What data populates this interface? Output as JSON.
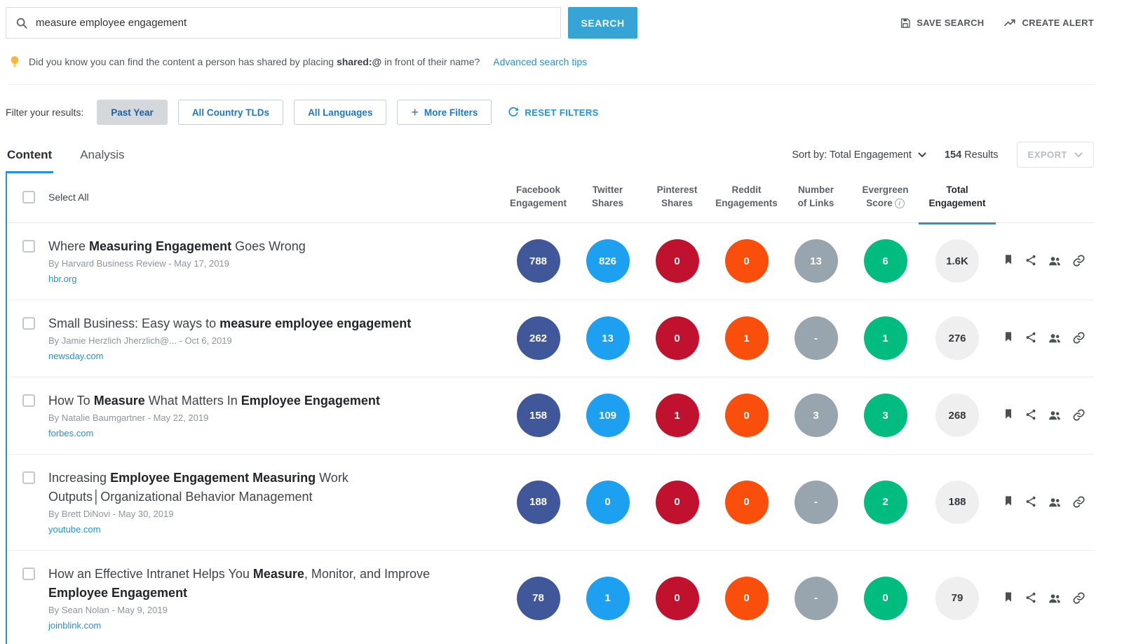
{
  "search": {
    "query": "measure employee engagement",
    "button_label": "SEARCH",
    "save_search_label": "SAVE SEARCH",
    "create_alert_label": "CREATE ALERT"
  },
  "tip": {
    "text_before": "Did you know you can find the content a person has shared by placing ",
    "bold": "shared:@",
    "text_after": " in front of their name?",
    "link_label": "Advanced search tips"
  },
  "filters": {
    "label": "Filter your results:",
    "buttons": [
      {
        "label": "Past Year",
        "active": true
      },
      {
        "label": "All Country TLDs",
        "active": false
      },
      {
        "label": "All Languages",
        "active": false
      }
    ],
    "more_filters_label": "More Filters",
    "reset_label": "RESET FILTERS"
  },
  "tabs": [
    {
      "label": "Content",
      "active": true
    },
    {
      "label": "Analysis",
      "active": false
    }
  ],
  "toolbar": {
    "sort_label": "Sort by: Total Engagement",
    "results_count": "154",
    "results_label": "Results",
    "export_label": "EXPORT"
  },
  "table": {
    "select_all_label": "Select All",
    "columns": [
      {
        "line1": "Facebook",
        "line2": "Engagement",
        "key": "facebook"
      },
      {
        "line1": "Twitter",
        "line2": "Shares",
        "key": "twitter"
      },
      {
        "line1": "Pinterest",
        "line2": "Shares",
        "key": "pinterest"
      },
      {
        "line1": "Reddit",
        "line2": "Engagements",
        "key": "reddit"
      },
      {
        "line1": "Number",
        "line2": "of Links",
        "key": "links"
      },
      {
        "line1": "Evergreen",
        "line2": "Score",
        "key": "evergreen",
        "info": true
      },
      {
        "line1": "Total",
        "line2": "Engagement",
        "key": "total",
        "active": true
      }
    ],
    "rows": [
      {
        "title_segments": [
          {
            "text": "Where ",
            "bold": false
          },
          {
            "text": "Measuring Engagement",
            "bold": true
          },
          {
            "text": " Goes Wrong",
            "bold": false
          }
        ],
        "byline": "By Harvard Business Review - May 17, 2019",
        "domain": "hbr.org",
        "metrics": {
          "facebook": "788",
          "twitter": "826",
          "pinterest": "0",
          "reddit": "0",
          "links": "13",
          "evergreen": "6",
          "total": "1.6K"
        }
      },
      {
        "title_segments": [
          {
            "text": "Small Business: Easy ways to ",
            "bold": false
          },
          {
            "text": "measure employee engagement",
            "bold": true
          }
        ],
        "byline": "By Jamie Herzlich Jherzlich@... - Oct 6, 2019",
        "domain": "newsday.com",
        "metrics": {
          "facebook": "262",
          "twitter": "13",
          "pinterest": "0",
          "reddit": "1",
          "links": "-",
          "evergreen": "1",
          "total": "276"
        }
      },
      {
        "title_segments": [
          {
            "text": "How To ",
            "bold": false
          },
          {
            "text": "Measure",
            "bold": true
          },
          {
            "text": " What Matters In ",
            "bold": false
          },
          {
            "text": "Employee Engagement",
            "bold": true
          }
        ],
        "byline": "By Natalie Baumgartner - May 22, 2019",
        "domain": "forbes.com",
        "metrics": {
          "facebook": "158",
          "twitter": "109",
          "pinterest": "1",
          "reddit": "0",
          "links": "3",
          "evergreen": "3",
          "total": "268"
        }
      },
      {
        "title_segments": [
          {
            "text": "Increasing ",
            "bold": false
          },
          {
            "text": "Employee Engagement Measuring",
            "bold": true
          },
          {
            "text": " Work Outputs│Organizational Behavior Management",
            "bold": false
          }
        ],
        "byline": "By Brett DiNovi - May 30, 2019",
        "domain": "youtube.com",
        "metrics": {
          "facebook": "188",
          "twitter": "0",
          "pinterest": "0",
          "reddit": "0",
          "links": "-",
          "evergreen": "2",
          "total": "188"
        }
      },
      {
        "title_segments": [
          {
            "text": "How an Effective Intranet Helps You ",
            "bold": false
          },
          {
            "text": "Measure",
            "bold": true
          },
          {
            "text": ", Monitor, and Improve ",
            "bold": false
          },
          {
            "text": "Employee Engagement",
            "bold": true
          }
        ],
        "byline": "By Sean Nolan - May 9, 2019",
        "domain": "joinblink.com",
        "metrics": {
          "facebook": "78",
          "twitter": "1",
          "pinterest": "0",
          "reddit": "0",
          "links": "-",
          "evergreen": "0",
          "total": "79"
        }
      }
    ]
  },
  "colors": {
    "accent_blue": "#2492d6",
    "search_button": "#36a4d5",
    "facebook": "#40579a",
    "twitter": "#1ea0f0",
    "pinterest": "#c0122f",
    "reddit": "#f94e0c",
    "links": "#98a4ae",
    "evergreen": "#00bd7f",
    "total_bg": "#efefef",
    "total_text": "#33383d"
  }
}
